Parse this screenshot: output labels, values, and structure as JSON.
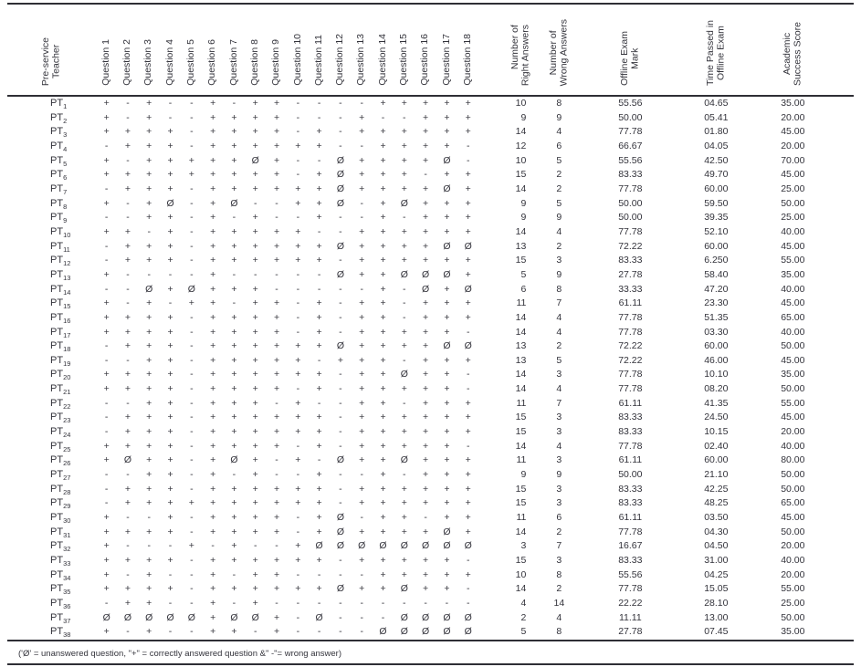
{
  "table": {
    "row_label_prefix": "PT",
    "headers": {
      "teacher": [
        "Pre-service",
        "Teacher"
      ],
      "questions": [
        "Question 1",
        "Question 2",
        "Question 3",
        "Question 4",
        "Question 5",
        "Question 6",
        "Question 7",
        "Question 8",
        "Question 9",
        "Question 10",
        "Question 11",
        "Question 12",
        "Question 13",
        "Question 14",
        "Question 15",
        "Question 16",
        "Question 17",
        "Question 18"
      ],
      "right": [
        "Number of",
        "Right Answers"
      ],
      "wrong": [
        "Number of",
        "Wrong Answers"
      ],
      "mark": [
        "Offline Exam",
        "Mark"
      ],
      "time": [
        "Time Passed in",
        "Offline Exam"
      ],
      "success": [
        "Academic",
        "Success Score"
      ]
    },
    "legend": {
      "unanswered_symbol": "Ø",
      "correct_symbol": "+",
      "wrong_symbol": "-"
    },
    "footnote": "('Ø' = unanswered question, \"+\" = correctly answered question &\" -\"= wrong answer)",
    "rows": [
      {
        "sub": "1",
        "answers": "+-+--+-++----+++++",
        "right": "10",
        "wrong": "8",
        "mark": "55.56",
        "time": "04.65",
        "success": "35.00"
      },
      {
        "sub": "2",
        "answers": "+-+--++++---+--+++",
        "right": "9",
        "wrong": "9",
        "mark": "50.00",
        "time": "05.41",
        "success": "20.00"
      },
      {
        "sub": "3",
        "answers": "++++-++++-+-++++++",
        "right": "14",
        "wrong": "4",
        "mark": "77.78",
        "time": "01.80",
        "success": "45.00"
      },
      {
        "sub": "4",
        "answers": "-+++-++++++--++++-",
        "right": "12",
        "wrong": "6",
        "mark": "66.67",
        "time": "04.05",
        "success": "20.00"
      },
      {
        "sub": "5",
        "answers": "+-+++++Ø+--Ø++++Ø-",
        "right": "10",
        "wrong": "5",
        "mark": "55.56",
        "time": "42.50",
        "success": "70.00"
      },
      {
        "sub": "6",
        "answers": "+++++++++-+Ø+++-++",
        "right": "15",
        "wrong": "2",
        "mark": "83.33",
        "time": "49.70",
        "success": "45.00"
      },
      {
        "sub": "7",
        "answers": "-+++-++++++Ø++++Ø+",
        "right": "14",
        "wrong": "2",
        "mark": "77.78",
        "time": "60.00",
        "success": "25.00"
      },
      {
        "sub": "8",
        "answers": "+-+Ø-+Ø--++Ø-+Ø+++",
        "right": "9",
        "wrong": "5",
        "mark": "50.00",
        "time": "59.50",
        "success": "50.00"
      },
      {
        "sub": "9",
        "answers": "--++-+-+--+--+-+++",
        "right": "9",
        "wrong": "9",
        "mark": "50.00",
        "time": "39.35",
        "success": "25.00"
      },
      {
        "sub": "10",
        "answers": "++-+-+++++--++++++",
        "right": "14",
        "wrong": "4",
        "mark": "77.78",
        "time": "52.10",
        "success": "40.00"
      },
      {
        "sub": "11",
        "answers": "-+++-++++++Ø++++ØØ",
        "right": "13",
        "wrong": "2",
        "mark": "72.22",
        "time": "60.00",
        "success": "45.00"
      },
      {
        "sub": "12",
        "answers": "-+++-++++++-++++++",
        "right": "15",
        "wrong": "3",
        "mark": "83.33",
        "time": "6.250",
        "success": "55.00"
      },
      {
        "sub": "13",
        "answers": "+----+-----Ø++ØØØ+",
        "right": "5",
        "wrong": "9",
        "mark": "27.78",
        "time": "58.40",
        "success": "35.00"
      },
      {
        "sub": "14",
        "answers": "--Ø+Ø+++-----+-Ø+Ø",
        "right": "6",
        "wrong": "8",
        "mark": "33.33",
        "time": "47.20",
        "success": "40.00"
      },
      {
        "sub": "15",
        "answers": "+-+-++-++-+-++-+++",
        "right": "11",
        "wrong": "7",
        "mark": "61.11",
        "time": "23.30",
        "success": "45.00"
      },
      {
        "sub": "16",
        "answers": "++++-++++-+-++-+++",
        "right": "14",
        "wrong": "4",
        "mark": "77.78",
        "time": "51.35",
        "success": "65.00"
      },
      {
        "sub": "17",
        "answers": "++++-++++-+-+++++-",
        "right": "14",
        "wrong": "4",
        "mark": "77.78",
        "time": "03.30",
        "success": "40.00"
      },
      {
        "sub": "18",
        "answers": "-+++-++++++Ø++++ØØ",
        "right": "13",
        "wrong": "2",
        "mark": "72.22",
        "time": "60.00",
        "success": "50.00"
      },
      {
        "sub": "19",
        "answers": "--++-+++++-+++-+++",
        "right": "13",
        "wrong": "5",
        "mark": "72.22",
        "time": "46.00",
        "success": "45.00"
      },
      {
        "sub": "20",
        "answers": "++++-++++++-++Ø++-",
        "right": "14",
        "wrong": "3",
        "mark": "77.78",
        "time": "10.10",
        "success": "35.00"
      },
      {
        "sub": "21",
        "answers": "++++-++++-+-+++++-",
        "right": "14",
        "wrong": "4",
        "mark": "77.78",
        "time": "08.20",
        "success": "50.00"
      },
      {
        "sub": "22",
        "answers": "--++-+++-+--++-+++",
        "right": "11",
        "wrong": "7",
        "mark": "61.11",
        "time": "41.35",
        "success": "55.00"
      },
      {
        "sub": "23",
        "answers": "-+++-++++++-++++++",
        "right": "15",
        "wrong": "3",
        "mark": "83.33",
        "time": "24.50",
        "success": "45.00"
      },
      {
        "sub": "24",
        "answers": "-+++-++++++-++++++",
        "right": "15",
        "wrong": "3",
        "mark": "83.33",
        "time": "10.15",
        "success": "20.00"
      },
      {
        "sub": "25",
        "answers": "++++-++++-+-+++++-",
        "right": "14",
        "wrong": "4",
        "mark": "77.78",
        "time": "02.40",
        "success": "40.00"
      },
      {
        "sub": "26",
        "answers": "+Ø++-+Ø+-+-Ø++Ø+++",
        "right": "11",
        "wrong": "3",
        "mark": "61.11",
        "time": "60.00",
        "success": "80.00"
      },
      {
        "sub": "27",
        "answers": "--++-+-+--+--+-+++",
        "right": "9",
        "wrong": "9",
        "mark": "50.00",
        "time": "21.10",
        "success": "50.00"
      },
      {
        "sub": "28",
        "answers": "-+++-++++++-++++++",
        "right": "15",
        "wrong": "3",
        "mark": "83.33",
        "time": "42.25",
        "success": "50.00"
      },
      {
        "sub": "29",
        "answers": "-++++++++++-++++++",
        "right": "15",
        "wrong": "3",
        "mark": "83.33",
        "time": "48.25",
        "success": "65.00"
      },
      {
        "sub": "30",
        "answers": "+--+-++++-+Ø-++-++",
        "right": "11",
        "wrong": "6",
        "mark": "61.11",
        "time": "03.50",
        "success": "45.00"
      },
      {
        "sub": "31",
        "answers": "++++-++++-+Ø++++Ø+",
        "right": "14",
        "wrong": "2",
        "mark": "77.78",
        "time": "04.30",
        "success": "50.00"
      },
      {
        "sub": "32",
        "answers": "+---+-+--+ØØØØØØØØ",
        "right": "3",
        "wrong": "7",
        "mark": "16.67",
        "time": "04.50",
        "success": "20.00"
      },
      {
        "sub": "33",
        "answers": "++++-++++++-+++++-",
        "right": "15",
        "wrong": "3",
        "mark": "83.33",
        "time": "31.00",
        "success": "40.00"
      },
      {
        "sub": "34",
        "answers": "+-+--+-++----+++++",
        "right": "10",
        "wrong": "8",
        "mark": "55.56",
        "time": "04.25",
        "success": "20.00"
      },
      {
        "sub": "35",
        "answers": "++++-++++++Ø++Ø++-",
        "right": "14",
        "wrong": "2",
        "mark": "77.78",
        "time": "15.05",
        "success": "55.00"
      },
      {
        "sub": "36",
        "answers": "-++--+-+----------",
        "right": "4",
        "wrong": "14",
        "mark": "22.22",
        "time": "28.10",
        "success": "25.00"
      },
      {
        "sub": "37",
        "answers": "ØØØØØ+ØØ+-Ø---ØØØØ",
        "right": "2",
        "wrong": "4",
        "mark": "11.11",
        "time": "13.00",
        "success": "50.00"
      },
      {
        "sub": "38",
        "answers": "+-+--++-+----ØØØØØ",
        "right": "5",
        "wrong": "8",
        "mark": "27.78",
        "time": "07.45",
        "success": "35.00"
      }
    ]
  }
}
